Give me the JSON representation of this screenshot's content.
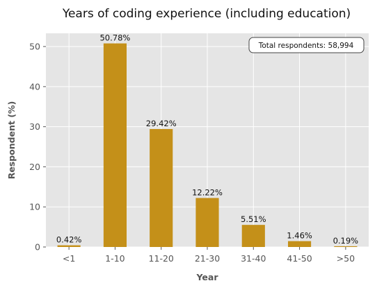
{
  "chart_data": {
    "type": "bar",
    "title": "Years of coding experience (including education)",
    "xlabel": "Year",
    "ylabel": "Respondent (%)",
    "categories": [
      "<1",
      "1-10",
      "11-20",
      "21-30",
      "31-40",
      "41-50",
      ">50"
    ],
    "values": [
      0.42,
      50.78,
      29.42,
      12.22,
      5.51,
      1.46,
      0.19
    ],
    "data_labels": [
      "0.42%",
      "50.78%",
      "29.42%",
      "12.22%",
      "5.51%",
      "1.46%",
      "0.19%"
    ],
    "ylim": [
      0,
      53.3
    ],
    "yticks": [
      0,
      10,
      20,
      30,
      40,
      50
    ],
    "grid": true,
    "annotation": "Total respondents: 58,994",
    "annotation_position": "top-right",
    "colors": {
      "bar": "#c49019",
      "plot_background": "#e5e5e5",
      "grid": "#ffffff"
    }
  }
}
